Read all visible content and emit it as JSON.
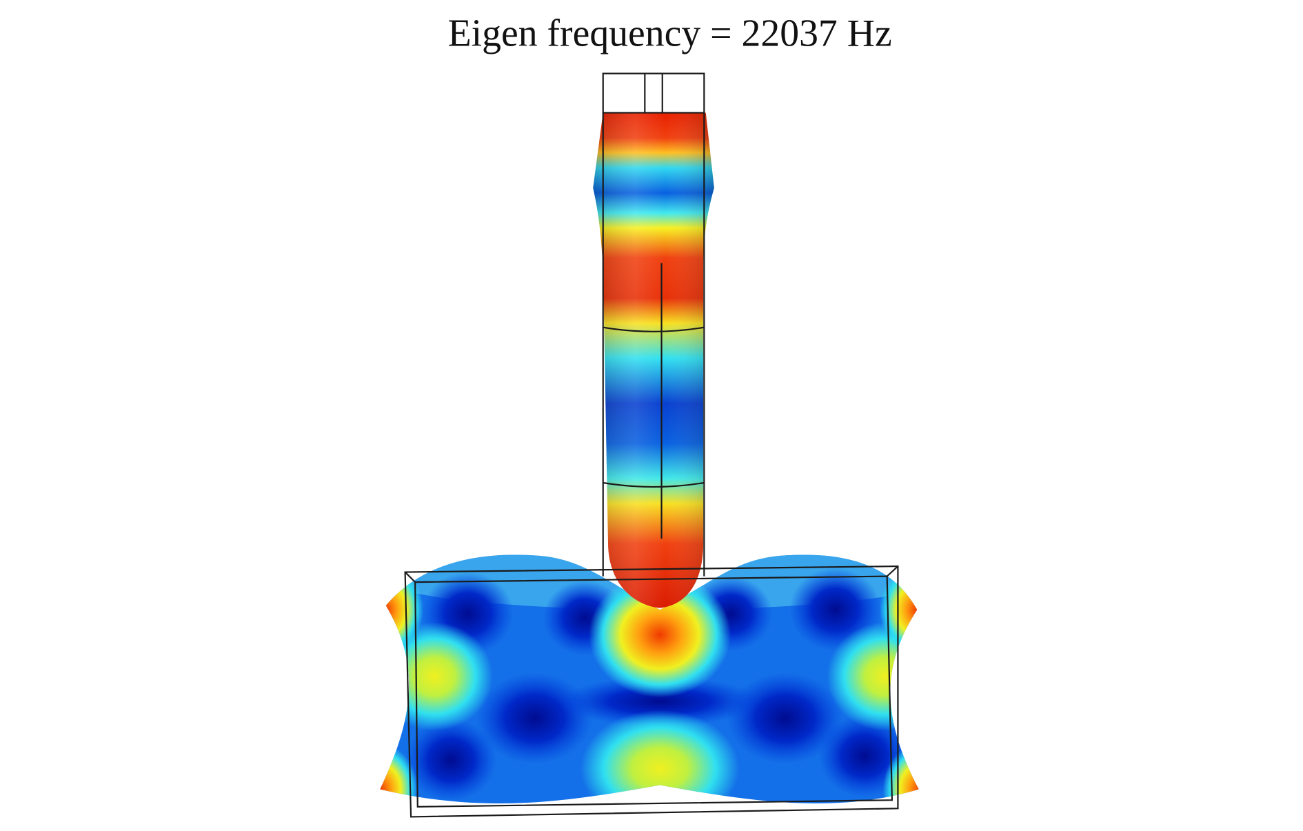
{
  "title": "Eigen frequency = 22037 Hz"
}
